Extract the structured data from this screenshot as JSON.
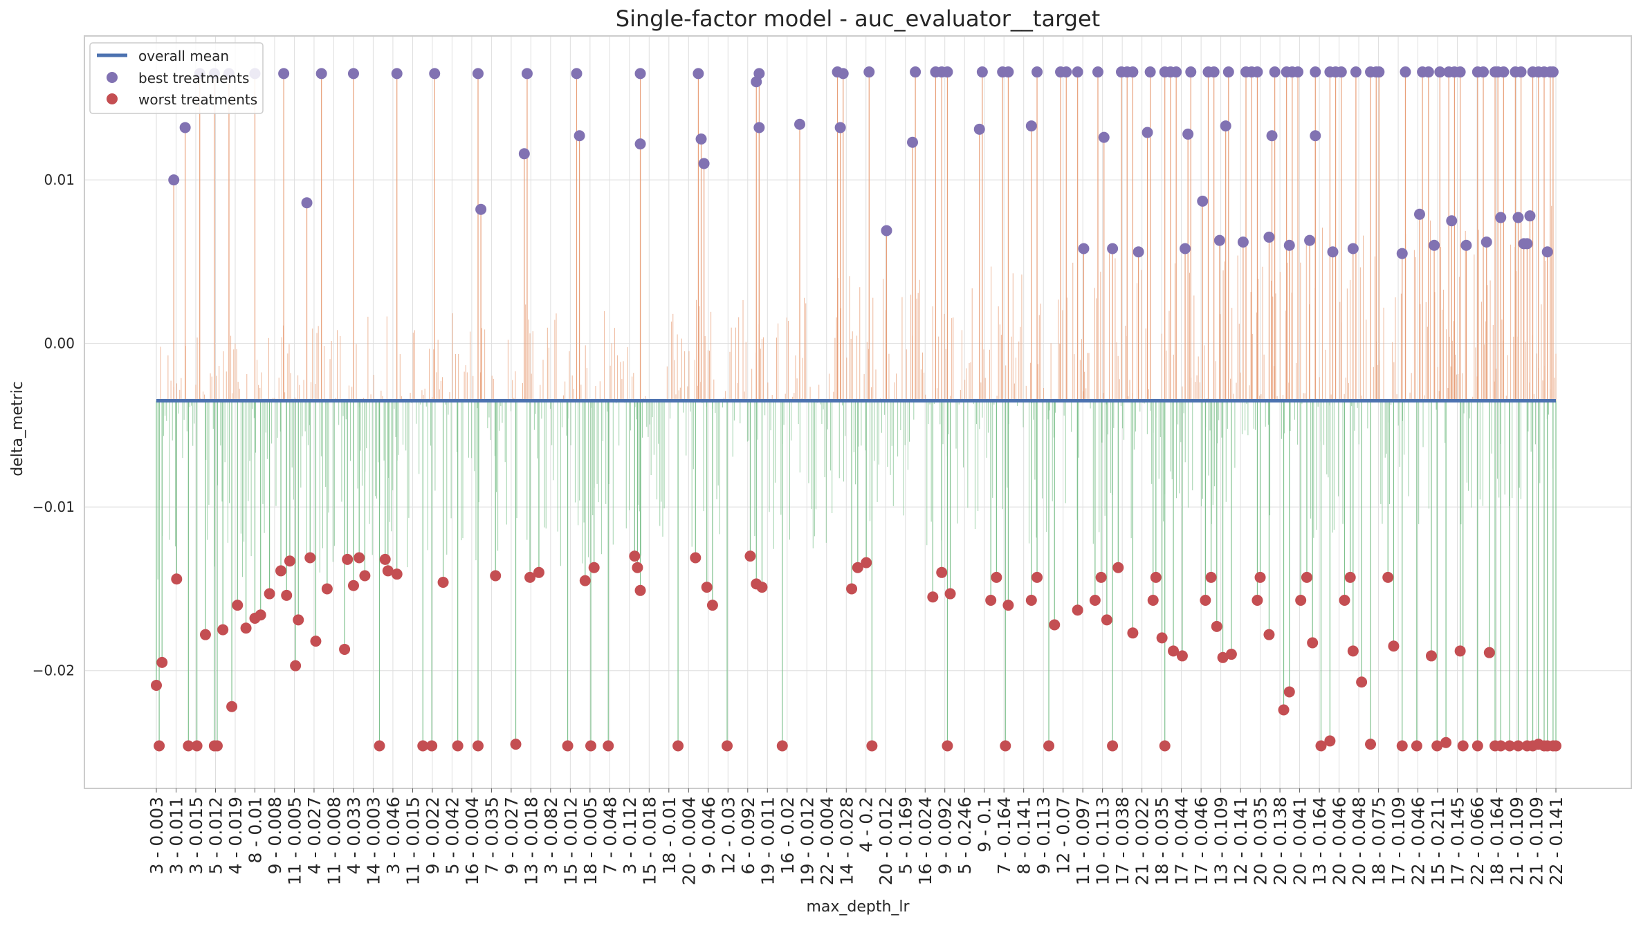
{
  "chart_data": {
    "type": "bar",
    "title": "Single-factor model - auc_evaluator__target",
    "xlabel": "max_depth_lr",
    "ylabel": "delta_metric",
    "ylim": [
      -0.0272,
      0.0188
    ],
    "yticks": [
      -0.02,
      -0.01,
      0.0,
      0.01
    ],
    "ytick_labels": [
      "−0.02",
      "−0.01",
      "0.00",
      "0.01"
    ],
    "overall_mean": -0.0035,
    "n_treatments": 960,
    "legend": {
      "placement": "top-left",
      "entries": [
        {
          "label": "overall mean",
          "color": "#4c72b0",
          "kind": "line"
        },
        {
          "label": "best treatments",
          "color": "#8172b2",
          "kind": "dot"
        },
        {
          "label": "worst treatments",
          "color": "#c44e52",
          "kind": "dot"
        }
      ]
    },
    "colors": {
      "positive_bar": "#e8a07a",
      "negative_bar": "#7fc18e",
      "mean_line": "#4c72b0",
      "best": "#8172b2",
      "worst": "#c44e52",
      "grid": "#dedede",
      "frame": "#cccccc"
    },
    "x_tick_labels": [
      "3 - 0.003",
      "3 - 0.011",
      "3 - 0.015",
      "5 - 0.012",
      "4 - 0.019",
      "8 - 0.01",
      "9 - 0.008",
      "11 - 0.005",
      "4 - 0.027",
      "11 - 0.008",
      "4 - 0.033",
      "14 - 0.003",
      "3 - 0.046",
      "11 - 0.015",
      "9 - 0.022",
      "5 - 0.042",
      "16 - 0.004",
      "7 - 0.035",
      "9 - 0.027",
      "13 - 0.018",
      "3 - 0.082",
      "15 - 0.012",
      "18 - 0.005",
      "7 - 0.048",
      "3 - 0.112",
      "15 - 0.018",
      "18 - 0.01",
      "20 - 0.004",
      "9 - 0.046",
      "12 - 0.03",
      "6 - 0.092",
      "19 - 0.011",
      "16 - 0.02",
      "19 - 0.012",
      "22 - 0.004",
      "14 - 0.028",
      "4 - 0.2",
      "20 - 0.012",
      "5 - 0.169",
      "16 - 0.024",
      "9 - 0.092",
      "5 - 0.246",
      "9 - 0.1",
      "7 - 0.164",
      "8 - 0.141",
      "9 - 0.113",
      "12 - 0.07",
      "11 - 0.097",
      "10 - 0.113",
      "17 - 0.038",
      "21 - 0.022",
      "18 - 0.035",
      "17 - 0.044",
      "17 - 0.046",
      "13 - 0.109",
      "12 - 0.141",
      "20 - 0.035",
      "20 - 0.138",
      "20 - 0.041",
      "13 - 0.164",
      "20 - 0.046",
      "20 - 0.048",
      "18 - 0.075",
      "17 - 0.109",
      "22 - 0.046",
      "15 - 0.211",
      "17 - 0.145",
      "22 - 0.066",
      "18 - 0.164",
      "21 - 0.109",
      "21 - 0.109",
      "22 - 0.141"
    ],
    "best_treatments": [
      {
        "x": 0.43,
        "y": 0.01
      },
      {
        "x": 0.71,
        "y": 0.0132
      },
      {
        "x": 1.07,
        "y": 0.0165
      },
      {
        "x": 1.43,
        "y": 0.0165
      },
      {
        "x": 1.79,
        "y": 0.0165
      },
      {
        "x": 2.43,
        "y": 0.0165
      },
      {
        "x": 3.14,
        "y": 0.0165
      },
      {
        "x": 3.71,
        "y": 0.0086
      },
      {
        "x": 4.07,
        "y": 0.0165
      },
      {
        "x": 4.86,
        "y": 0.0165
      },
      {
        "x": 5.93,
        "y": 0.0165
      },
      {
        "x": 6.86,
        "y": 0.0165
      },
      {
        "x": 7.93,
        "y": 0.0165
      },
      {
        "x": 8.0,
        "y": 0.0082
      },
      {
        "x": 9.07,
        "y": 0.0116
      },
      {
        "x": 9.14,
        "y": 0.0165
      },
      {
        "x": 10.36,
        "y": 0.0165
      },
      {
        "x": 10.43,
        "y": 0.0127
      },
      {
        "x": 11.93,
        "y": 0.0122
      },
      {
        "x": 11.93,
        "y": 0.0165
      },
      {
        "x": 13.36,
        "y": 0.0165
      },
      {
        "x": 13.43,
        "y": 0.0125
      },
      {
        "x": 13.5,
        "y": 0.011
      },
      {
        "x": 14.79,
        "y": 0.016
      },
      {
        "x": 14.86,
        "y": 0.0165
      },
      {
        "x": 14.86,
        "y": 0.0132
      },
      {
        "x": 15.86,
        "y": 0.0134
      },
      {
        "x": 16.79,
        "y": 0.0166
      },
      {
        "x": 16.86,
        "y": 0.0132
      },
      {
        "x": 16.93,
        "y": 0.0165
      },
      {
        "x": 17.57,
        "y": 0.0166
      },
      {
        "x": 18.0,
        "y": 0.0069
      },
      {
        "x": 18.64,
        "y": 0.0123
      },
      {
        "x": 18.71,
        "y": 0.0166
      },
      {
        "x": 19.21,
        "y": 0.0166
      },
      {
        "x": 19.36,
        "y": 0.0166
      },
      {
        "x": 19.5,
        "y": 0.0166
      },
      {
        "x": 20.29,
        "y": 0.0131
      },
      {
        "x": 20.36,
        "y": 0.0166
      },
      {
        "x": 20.86,
        "y": 0.0166
      },
      {
        "x": 21.0,
        "y": 0.0166
      },
      {
        "x": 21.57,
        "y": 0.0133
      },
      {
        "x": 21.71,
        "y": 0.0166
      },
      {
        "x": 22.29,
        "y": 0.0166
      },
      {
        "x": 22.43,
        "y": 0.0166
      },
      {
        "x": 22.71,
        "y": 0.0166
      },
      {
        "x": 22.86,
        "y": 0.0058
      },
      {
        "x": 23.21,
        "y": 0.0166
      },
      {
        "x": 23.36,
        "y": 0.0126
      },
      {
        "x": 23.57,
        "y": 0.0058
      },
      {
        "x": 23.79,
        "y": 0.0166
      },
      {
        "x": 23.93,
        "y": 0.0166
      },
      {
        "x": 24.07,
        "y": 0.0166
      },
      {
        "x": 24.21,
        "y": 0.0056
      },
      {
        "x": 24.43,
        "y": 0.0129
      },
      {
        "x": 24.5,
        "y": 0.0166
      },
      {
        "x": 24.86,
        "y": 0.0166
      },
      {
        "x": 25.0,
        "y": 0.0166
      },
      {
        "x": 25.14,
        "y": 0.0166
      },
      {
        "x": 25.36,
        "y": 0.0058
      },
      {
        "x": 25.43,
        "y": 0.0128
      },
      {
        "x": 25.5,
        "y": 0.0166
      },
      {
        "x": 25.79,
        "y": 0.0087
      },
      {
        "x": 25.93,
        "y": 0.0166
      },
      {
        "x": 26.07,
        "y": 0.0166
      },
      {
        "x": 26.21,
        "y": 0.0063
      },
      {
        "x": 26.36,
        "y": 0.0133
      },
      {
        "x": 26.43,
        "y": 0.0166
      },
      {
        "x": 26.79,
        "y": 0.0062
      },
      {
        "x": 26.86,
        "y": 0.0166
      },
      {
        "x": 27.0,
        "y": 0.0166
      },
      {
        "x": 27.14,
        "y": 0.0166
      },
      {
        "x": 27.43,
        "y": 0.0065
      },
      {
        "x": 27.5,
        "y": 0.0127
      },
      {
        "x": 27.57,
        "y": 0.0166
      },
      {
        "x": 27.86,
        "y": 0.0166
      },
      {
        "x": 27.93,
        "y": 0.006
      },
      {
        "x": 28.0,
        "y": 0.0166
      },
      {
        "x": 28.14,
        "y": 0.0166
      },
      {
        "x": 28.43,
        "y": 0.0063
      },
      {
        "x": 28.57,
        "y": 0.0127
      },
      {
        "x": 28.57,
        "y": 0.0166
      },
      {
        "x": 28.93,
        "y": 0.0166
      },
      {
        "x": 29.0,
        "y": 0.0056
      },
      {
        "x": 29.07,
        "y": 0.0166
      },
      {
        "x": 29.21,
        "y": 0.0166
      },
      {
        "x": 29.5,
        "y": 0.0058
      },
      {
        "x": 29.57,
        "y": 0.0166
      },
      {
        "x": 29.93,
        "y": 0.0166
      },
      {
        "x": 30.07,
        "y": 0.0166
      },
      {
        "x": 30.14,
        "y": 0.0166
      },
      {
        "x": 30.71,
        "y": 0.0055
      },
      {
        "x": 30.79,
        "y": 0.0166
      },
      {
        "x": 31.14,
        "y": 0.0079
      },
      {
        "x": 31.21,
        "y": 0.0166
      },
      {
        "x": 31.36,
        "y": 0.0166
      },
      {
        "x": 31.5,
        "y": 0.006
      },
      {
        "x": 31.64,
        "y": 0.0166
      },
      {
        "x": 31.86,
        "y": 0.0166
      },
      {
        "x": 31.93,
        "y": 0.0075
      },
      {
        "x": 32.0,
        "y": 0.0166
      },
      {
        "x": 32.14,
        "y": 0.0166
      },
      {
        "x": 32.29,
        "y": 0.006
      },
      {
        "x": 32.57,
        "y": 0.0166
      },
      {
        "x": 32.71,
        "y": 0.0166
      },
      {
        "x": 32.79,
        "y": 0.0062
      },
      {
        "x": 33.0,
        "y": 0.0166
      },
      {
        "x": 33.07,
        "y": 0.0166
      },
      {
        "x": 33.14,
        "y": 0.0077
      },
      {
        "x": 33.21,
        "y": 0.0166
      },
      {
        "x": 33.5,
        "y": 0.0166
      },
      {
        "x": 33.57,
        "y": 0.0077
      },
      {
        "x": 33.64,
        "y": 0.0166
      },
      {
        "x": 33.71,
        "y": 0.0061
      },
      {
        "x": 33.79,
        "y": 0.0061
      },
      {
        "x": 33.86,
        "y": 0.0078
      },
      {
        "x": 33.93,
        "y": 0.0166
      },
      {
        "x": 34.07,
        "y": 0.0166
      },
      {
        "x": 34.21,
        "y": 0.0166
      },
      {
        "x": 34.29,
        "y": 0.0056
      },
      {
        "x": 34.36,
        "y": 0.0166
      },
      {
        "x": 34.43,
        "y": 0.0166
      }
    ],
    "worst_treatments": [
      {
        "x": 0.0,
        "y": -0.0209
      },
      {
        "x": 0.07,
        "y": -0.0246
      },
      {
        "x": 0.14,
        "y": -0.0195
      },
      {
        "x": 0.5,
        "y": -0.0144
      },
      {
        "x": 0.79,
        "y": -0.0246
      },
      {
        "x": 1.0,
        "y": -0.0246
      },
      {
        "x": 1.21,
        "y": -0.0178
      },
      {
        "x": 1.43,
        "y": -0.0246
      },
      {
        "x": 1.5,
        "y": -0.0246
      },
      {
        "x": 1.64,
        "y": -0.0175
      },
      {
        "x": 1.86,
        "y": -0.0222
      },
      {
        "x": 2.0,
        "y": -0.016
      },
      {
        "x": 2.21,
        "y": -0.0174
      },
      {
        "x": 2.43,
        "y": -0.0168
      },
      {
        "x": 2.57,
        "y": -0.0166
      },
      {
        "x": 2.79,
        "y": -0.0153
      },
      {
        "x": 3.07,
        "y": -0.0139
      },
      {
        "x": 3.21,
        "y": -0.0154
      },
      {
        "x": 3.29,
        "y": -0.0133
      },
      {
        "x": 3.43,
        "y": -0.0197
      },
      {
        "x": 3.5,
        "y": -0.0169
      },
      {
        "x": 3.79,
        "y": -0.0131
      },
      {
        "x": 3.93,
        "y": -0.0182
      },
      {
        "x": 4.21,
        "y": -0.015
      },
      {
        "x": 4.64,
        "y": -0.0187
      },
      {
        "x": 4.71,
        "y": -0.0132
      },
      {
        "x": 4.86,
        "y": -0.0148
      },
      {
        "x": 5.0,
        "y": -0.0131
      },
      {
        "x": 5.14,
        "y": -0.0142
      },
      {
        "x": 5.5,
        "y": -0.0246
      },
      {
        "x": 5.64,
        "y": -0.0132
      },
      {
        "x": 5.71,
        "y": -0.0139
      },
      {
        "x": 5.93,
        "y": -0.0141
      },
      {
        "x": 6.57,
        "y": -0.0246
      },
      {
        "x": 6.79,
        "y": -0.0246
      },
      {
        "x": 7.07,
        "y": -0.0146
      },
      {
        "x": 7.43,
        "y": -0.0246
      },
      {
        "x": 7.93,
        "y": -0.0246
      },
      {
        "x": 8.36,
        "y": -0.0142
      },
      {
        "x": 8.86,
        "y": -0.0245
      },
      {
        "x": 9.21,
        "y": -0.0143
      },
      {
        "x": 9.43,
        "y": -0.014
      },
      {
        "x": 10.14,
        "y": -0.0246
      },
      {
        "x": 10.57,
        "y": -0.0145
      },
      {
        "x": 10.71,
        "y": -0.0246
      },
      {
        "x": 10.79,
        "y": -0.0137
      },
      {
        "x": 11.14,
        "y": -0.0246
      },
      {
        "x": 11.79,
        "y": -0.013
      },
      {
        "x": 11.86,
        "y": -0.0137
      },
      {
        "x": 11.93,
        "y": -0.0151
      },
      {
        "x": 12.86,
        "y": -0.0246
      },
      {
        "x": 13.29,
        "y": -0.0131
      },
      {
        "x": 13.57,
        "y": -0.0149
      },
      {
        "x": 13.71,
        "y": -0.016
      },
      {
        "x": 14.07,
        "y": -0.0246
      },
      {
        "x": 14.64,
        "y": -0.013
      },
      {
        "x": 14.79,
        "y": -0.0147
      },
      {
        "x": 14.93,
        "y": -0.0149
      },
      {
        "x": 15.43,
        "y": -0.0246
      },
      {
        "x": 17.14,
        "y": -0.015
      },
      {
        "x": 17.29,
        "y": -0.0137
      },
      {
        "x": 17.5,
        "y": -0.0134
      },
      {
        "x": 17.64,
        "y": -0.0246
      },
      {
        "x": 19.14,
        "y": -0.0155
      },
      {
        "x": 19.36,
        "y": -0.014
      },
      {
        "x": 19.5,
        "y": -0.0246
      },
      {
        "x": 19.57,
        "y": -0.0153
      },
      {
        "x": 20.57,
        "y": -0.0157
      },
      {
        "x": 20.71,
        "y": -0.0143
      },
      {
        "x": 20.93,
        "y": -0.0246
      },
      {
        "x": 21.0,
        "y": -0.016
      },
      {
        "x": 21.57,
        "y": -0.0157
      },
      {
        "x": 21.71,
        "y": -0.0143
      },
      {
        "x": 22.0,
        "y": -0.0246
      },
      {
        "x": 22.14,
        "y": -0.0172
      },
      {
        "x": 22.71,
        "y": -0.0163
      },
      {
        "x": 23.14,
        "y": -0.0157
      },
      {
        "x": 23.29,
        "y": -0.0143
      },
      {
        "x": 23.43,
        "y": -0.0169
      },
      {
        "x": 23.57,
        "y": -0.0246
      },
      {
        "x": 23.71,
        "y": -0.0137
      },
      {
        "x": 24.07,
        "y": -0.0177
      },
      {
        "x": 24.57,
        "y": -0.0157
      },
      {
        "x": 24.64,
        "y": -0.0143
      },
      {
        "x": 24.79,
        "y": -0.018
      },
      {
        "x": 24.86,
        "y": -0.0246
      },
      {
        "x": 25.07,
        "y": -0.0188
      },
      {
        "x": 25.29,
        "y": -0.0191
      },
      {
        "x": 25.86,
        "y": -0.0157
      },
      {
        "x": 26.0,
        "y": -0.0143
      },
      {
        "x": 26.14,
        "y": -0.0173
      },
      {
        "x": 26.29,
        "y": -0.0192
      },
      {
        "x": 26.5,
        "y": -0.019
      },
      {
        "x": 27.14,
        "y": -0.0157
      },
      {
        "x": 27.21,
        "y": -0.0143
      },
      {
        "x": 27.43,
        "y": -0.0178
      },
      {
        "x": 27.79,
        "y": -0.0224
      },
      {
        "x": 27.93,
        "y": -0.0213
      },
      {
        "x": 28.21,
        "y": -0.0157
      },
      {
        "x": 28.36,
        "y": -0.0143
      },
      {
        "x": 28.5,
        "y": -0.0183
      },
      {
        "x": 28.71,
        "y": -0.0246
      },
      {
        "x": 28.93,
        "y": -0.0243
      },
      {
        "x": 29.29,
        "y": -0.0157
      },
      {
        "x": 29.43,
        "y": -0.0143
      },
      {
        "x": 29.5,
        "y": -0.0188
      },
      {
        "x": 29.71,
        "y": -0.0207
      },
      {
        "x": 29.93,
        "y": -0.0245
      },
      {
        "x": 30.36,
        "y": -0.0143
      },
      {
        "x": 30.5,
        "y": -0.0185
      },
      {
        "x": 30.71,
        "y": -0.0246
      },
      {
        "x": 31.07,
        "y": -0.0246
      },
      {
        "x": 31.43,
        "y": -0.0191
      },
      {
        "x": 31.57,
        "y": -0.0246
      },
      {
        "x": 31.79,
        "y": -0.0244
      },
      {
        "x": 32.14,
        "y": -0.0188
      },
      {
        "x": 32.21,
        "y": -0.0246
      },
      {
        "x": 32.57,
        "y": -0.0246
      },
      {
        "x": 32.86,
        "y": -0.0189
      },
      {
        "x": 33.0,
        "y": -0.0246
      },
      {
        "x": 33.14,
        "y": -0.0246
      },
      {
        "x": 33.36,
        "y": -0.0246
      },
      {
        "x": 33.57,
        "y": -0.0246
      },
      {
        "x": 33.79,
        "y": -0.0246
      },
      {
        "x": 33.93,
        "y": -0.0246
      },
      {
        "x": 34.07,
        "y": -0.0245
      },
      {
        "x": 34.21,
        "y": -0.0246
      },
      {
        "x": 34.29,
        "y": -0.0246
      },
      {
        "x": 34.43,
        "y": -0.0246
      },
      {
        "x": 34.5,
        "y": -0.0246
      }
    ]
  }
}
